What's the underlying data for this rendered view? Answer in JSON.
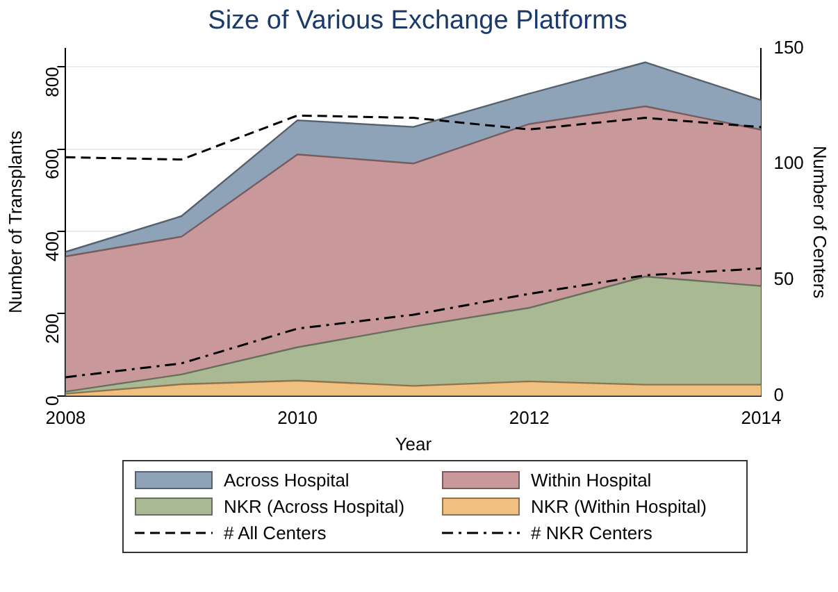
{
  "chart_data": {
    "type": "area",
    "title": "Size of Various Exchange Platforms",
    "xlabel": "Year",
    "ylabel": "Number of Transplants",
    "y2label": "Number of Centers",
    "x": [
      2008,
      2009,
      2010,
      2011,
      2012,
      2013,
      2014
    ],
    "xlim": [
      2008,
      2014
    ],
    "xticks": [
      2008,
      2010,
      2012,
      2014
    ],
    "ylim": [
      0,
      845
    ],
    "yticks": [
      0,
      200,
      400,
      600,
      800
    ],
    "y2lim": [
      0,
      150
    ],
    "y2ticks": [
      0,
      50,
      100,
      150
    ],
    "grid": "y",
    "legend": "bottom",
    "series": [
      {
        "name": "Across Hospital",
        "color": "#8ea2b8",
        "values": [
          350,
          437,
          670,
          654,
          735,
          811,
          719
        ]
      },
      {
        "name": "Within Hospital",
        "color": "#c8989b",
        "values": [
          339,
          387,
          587,
          565,
          661,
          704,
          647
        ]
      },
      {
        "name": "NKR (Across Hospital)",
        "color": "#a9b994",
        "values": [
          10,
          52,
          118,
          168,
          214,
          290,
          267
        ]
      },
      {
        "name": "NKR (Within Hospital)",
        "color": "#f0c080",
        "values": [
          5,
          28,
          37,
          24,
          35,
          27,
          27
        ]
      },
      {
        "name": "# All Centers",
        "type": "line",
        "axis": "y2",
        "color": "#000000",
        "line_style": "dashed",
        "values": [
          103,
          102,
          121,
          120,
          115,
          120,
          116
        ]
      },
      {
        "name": "# NKR Centers",
        "type": "line",
        "axis": "y2",
        "color": "#000000",
        "line_style": "dashdot",
        "values": [
          8,
          14,
          29,
          35,
          44,
          52,
          55
        ]
      }
    ]
  }
}
